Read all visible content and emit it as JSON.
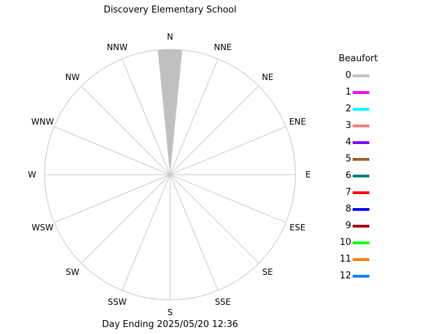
{
  "title": "Discovery Elementary School",
  "footer": "Day Ending 2025/05/20 12:36",
  "chart_data": {
    "type": "windrose",
    "directions": [
      "N",
      "NNE",
      "NE",
      "ENE",
      "E",
      "ESE",
      "SE",
      "SSE",
      "S",
      "SSW",
      "SW",
      "WSW",
      "W",
      "WNW",
      "NW",
      "NNW"
    ],
    "legend_title": "Beaufort",
    "beaufort": [
      {
        "label": "0",
        "color": "#c0c0c0"
      },
      {
        "label": "1",
        "color": "#ff00ff"
      },
      {
        "label": "2",
        "color": "#00ffff"
      },
      {
        "label": "3",
        "color": "#f08080"
      },
      {
        "label": "4",
        "color": "#8000ff"
      },
      {
        "label": "5",
        "color": "#a0602a"
      },
      {
        "label": "6",
        "color": "#008070"
      },
      {
        "label": "7",
        "color": "#ff0000"
      },
      {
        "label": "8",
        "color": "#0000ff"
      },
      {
        "label": "9",
        "color": "#a00000"
      },
      {
        "label": "10",
        "color": "#00ff00"
      },
      {
        "label": "11",
        "color": "#ff8000"
      },
      {
        "label": "12",
        "color": "#0080ff"
      }
    ],
    "petals": [
      {
        "direction": "N",
        "beaufort": "0",
        "fraction": 1.0
      }
    ],
    "grid_color": "#c8c8c8"
  }
}
